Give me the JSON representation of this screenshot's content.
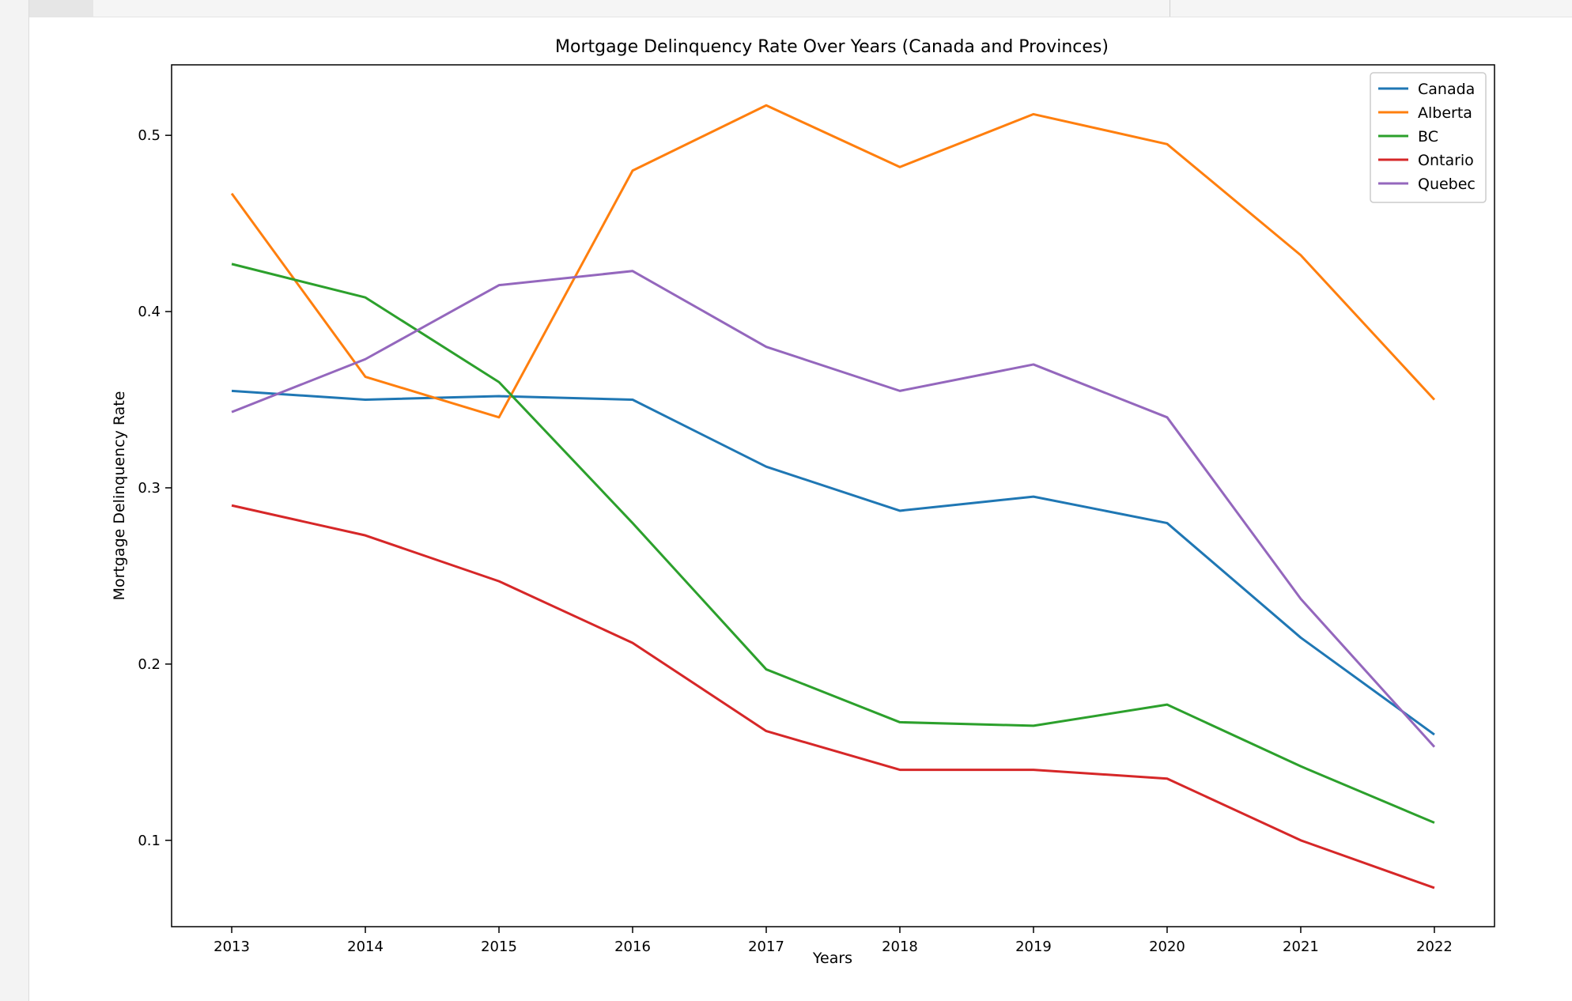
{
  "chart_data": {
    "type": "line",
    "title": "Mortgage Delinquency Rate Over Years (Canada and Provinces)",
    "xlabel": "Years",
    "ylabel": "Mortgage Delinquency Rate",
    "x": [
      2013,
      2014,
      2015,
      2016,
      2017,
      2018,
      2019,
      2020,
      2021,
      2022
    ],
    "x_tick_labels": [
      "2013",
      "2014",
      "2015",
      "2016",
      "2017",
      "2018",
      "2019",
      "2020",
      "2021",
      "2022"
    ],
    "y_ticks": [
      0.1,
      0.2,
      0.3,
      0.4,
      0.5
    ],
    "y_tick_labels": [
      "0.1",
      "0.2",
      "0.3",
      "0.4",
      "0.5"
    ],
    "xlim": [
      2012.55,
      2022.45
    ],
    "ylim": [
      0.051,
      0.54
    ],
    "grid": false,
    "legend_position": "top-right",
    "series": [
      {
        "name": "Canada",
        "color": "#1f77b4",
        "values": [
          0.355,
          0.35,
          0.352,
          0.35,
          0.312,
          0.287,
          0.295,
          0.28,
          0.215,
          0.16
        ]
      },
      {
        "name": "Alberta",
        "color": "#ff7f0e",
        "values": [
          0.467,
          0.363,
          0.34,
          0.48,
          0.517,
          0.482,
          0.512,
          0.495,
          0.432,
          0.35
        ]
      },
      {
        "name": "BC",
        "color": "#2ca02c",
        "values": [
          0.427,
          0.408,
          0.36,
          0.28,
          0.197,
          0.167,
          0.165,
          0.177,
          0.142,
          0.11
        ]
      },
      {
        "name": "Ontario",
        "color": "#d62728",
        "values": [
          0.29,
          0.273,
          0.247,
          0.212,
          0.162,
          0.14,
          0.14,
          0.135,
          0.1,
          0.073
        ]
      },
      {
        "name": "Quebec",
        "color": "#9467bd",
        "values": [
          0.343,
          0.373,
          0.415,
          0.423,
          0.38,
          0.355,
          0.37,
          0.34,
          0.237,
          0.153
        ]
      }
    ]
  }
}
